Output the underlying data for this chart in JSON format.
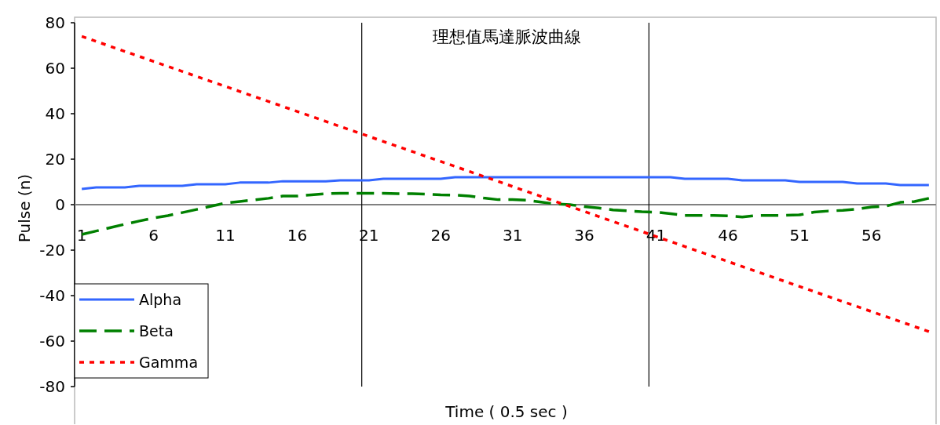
{
  "chart_data": {
    "type": "line",
    "title": "理想值馬達脈波曲線",
    "xlabel": "Time ( 0.5 sec )",
    "ylabel": "Pulse (n)",
    "x": [
      1,
      2,
      3,
      4,
      5,
      6,
      7,
      8,
      9,
      10,
      11,
      12,
      13,
      14,
      15,
      16,
      17,
      18,
      19,
      20,
      21,
      22,
      23,
      24,
      25,
      26,
      27,
      28,
      29,
      30,
      31,
      32,
      33,
      34,
      35,
      36,
      37,
      38,
      39,
      40,
      41,
      42,
      43,
      44,
      45,
      46,
      47,
      48,
      49,
      50,
      51,
      52,
      53,
      54,
      55,
      56,
      57,
      58,
      59,
      60
    ],
    "xlim": [
      0.5,
      60.5
    ],
    "xticks": [
      1,
      6,
      11,
      16,
      21,
      26,
      31,
      36,
      41,
      46,
      51,
      56
    ],
    "ylim": [
      -80,
      80
    ],
    "yticks": [
      -80,
      -60,
      -40,
      -20,
      0,
      20,
      40,
      60,
      80
    ],
    "legend": "bottom left",
    "ref_lines": [
      {
        "axis": "x",
        "value": 20.5,
        "color": "#000000"
      },
      {
        "axis": "x",
        "value": 40.5,
        "color": "#000000"
      }
    ],
    "series": [
      {
        "name": "Alpha",
        "color": "#3366ff",
        "line_style": "solid",
        "values": [
          6.9,
          7.6,
          7.6,
          7.6,
          8.3,
          8.3,
          8.3,
          8.3,
          9,
          9,
          9,
          9.7,
          9.7,
          9.7,
          10.3,
          10.3,
          10.3,
          10.3,
          10.7,
          10.7,
          10.7,
          11.4,
          11.4,
          11.4,
          11.4,
          11.4,
          12.1,
          12.1,
          12.1,
          12.1,
          12.1,
          12.1,
          12.1,
          12.1,
          12.1,
          12.1,
          12.1,
          12.1,
          12.1,
          12.1,
          12.1,
          12.1,
          11.4,
          11.4,
          11.4,
          11.4,
          10.7,
          10.7,
          10.7,
          10.7,
          10,
          10,
          10,
          10,
          9.3,
          9.3,
          9.3,
          8.6,
          8.6,
          8.6
        ]
      },
      {
        "name": "Beta",
        "color": "#008000",
        "line_style": "dashed",
        "values": [
          -13.1,
          -11.6,
          -10.1,
          -8.6,
          -7.2,
          -5.9,
          -4.8,
          -3.5,
          -2.1,
          -0.7,
          0.7,
          1.4,
          2.1,
          2.8,
          3.8,
          3.8,
          4.3,
          4.8,
          5,
          5,
          5,
          5,
          4.8,
          4.8,
          4.6,
          4.3,
          4.2,
          3.8,
          2.9,
          2.2,
          2.2,
          2,
          1.1,
          0.3,
          0,
          -0.9,
          -1.5,
          -2.3,
          -2.7,
          -3.1,
          -3.3,
          -4,
          -4.7,
          -4.7,
          -4.7,
          -4.9,
          -5.4,
          -4.7,
          -4.7,
          -4.7,
          -4.5,
          -3.3,
          -2.8,
          -2.5,
          -1.9,
          -1,
          -0.7,
          1,
          1.4,
          2.8
        ]
      },
      {
        "name": "Gamma",
        "color": "#ff0000",
        "line_style": "dotted",
        "values": [
          74,
          71.8,
          69.6,
          67.4,
          65.2,
          63,
          60.8,
          58.6,
          56.4,
          54.2,
          52,
          49.8,
          47.6,
          45.4,
          43.2,
          41,
          38.8,
          36.6,
          34.4,
          32.2,
          30,
          27.8,
          25.6,
          23.4,
          21.2,
          19,
          16.8,
          14.6,
          12.4,
          10.2,
          8,
          5.8,
          3.6,
          1.4,
          -0.8,
          -3,
          -5.2,
          -7.4,
          -9.6,
          -11.8,
          -14,
          -16.2,
          -18.4,
          -20.6,
          -22.8,
          -25,
          -27.2,
          -29.4,
          -31.6,
          -33.8,
          -36,
          -38.2,
          -40.4,
          -42.6,
          -44.8,
          -47,
          -49.2,
          -51.4,
          -53.6,
          -55.8
        ]
      }
    ]
  }
}
